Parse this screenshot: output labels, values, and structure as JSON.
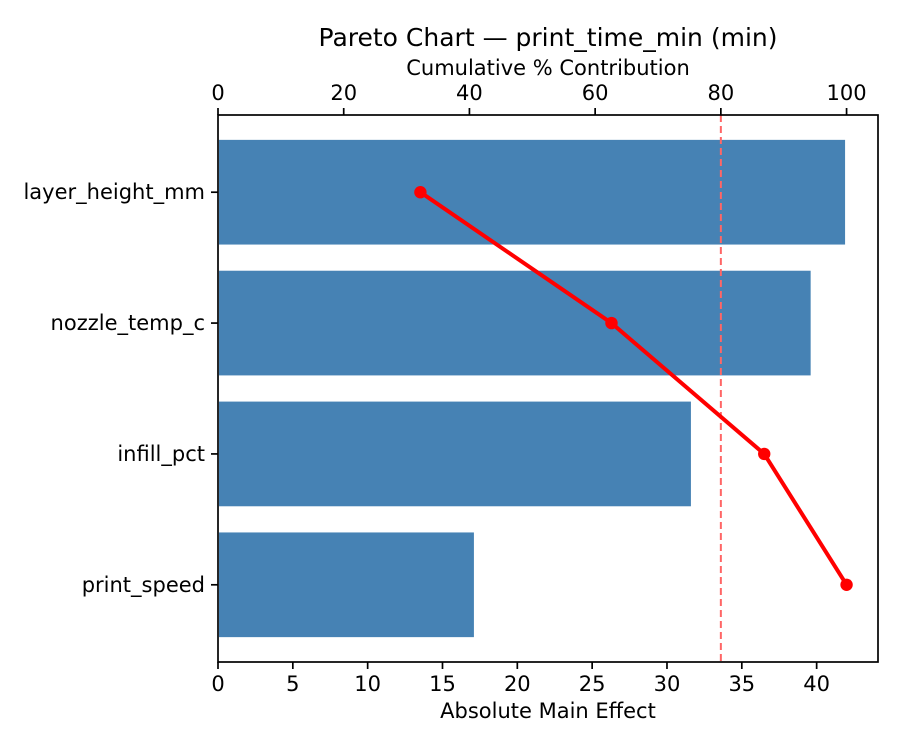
{
  "figure": {
    "title": "Pareto Chart — print_time_min (min)"
  },
  "chart_data": {
    "type": "bar",
    "subtype": "pareto (horizontal bars + cumulative line)",
    "title": "Pareto Chart — print_time_min (min)",
    "categories": [
      "layer_height_mm",
      "nozzle_temp_c",
      "infill_pct",
      "print_speed"
    ],
    "series": [
      {
        "name": "Absolute Main Effect",
        "type": "bar",
        "orientation": "horizontal",
        "values": [
          41.9,
          39.6,
          31.6,
          17.1
        ],
        "color": "#4682B4"
      },
      {
        "name": "Cumulative % Contribution",
        "type": "line",
        "values": [
          32.2,
          62.6,
          86.9,
          100.0
        ],
        "color": "#FF0000",
        "marker": "circle"
      }
    ],
    "bottom_axis": {
      "label": "Absolute Main Effect",
      "ticks": [
        0,
        5,
        10,
        15,
        20,
        25,
        30,
        35,
        40
      ],
      "lim": [
        0,
        44.1
      ]
    },
    "top_axis": {
      "label": "Cumulative % Contribution",
      "ticks": [
        0,
        20,
        40,
        60,
        80,
        100
      ],
      "lim": [
        0,
        105
      ]
    },
    "threshold_line": {
      "value": 80,
      "axis": "top",
      "style": "dashed",
      "color": "#FF6666"
    },
    "colors": {
      "bar": "#4682B4",
      "line": "#FF0000",
      "threshold": "#FF6666",
      "spine": "#000000",
      "text": "#000000",
      "background": "#FFFFFF"
    },
    "grid": false,
    "legend": false,
    "bar_relative_height": 0.8
  }
}
